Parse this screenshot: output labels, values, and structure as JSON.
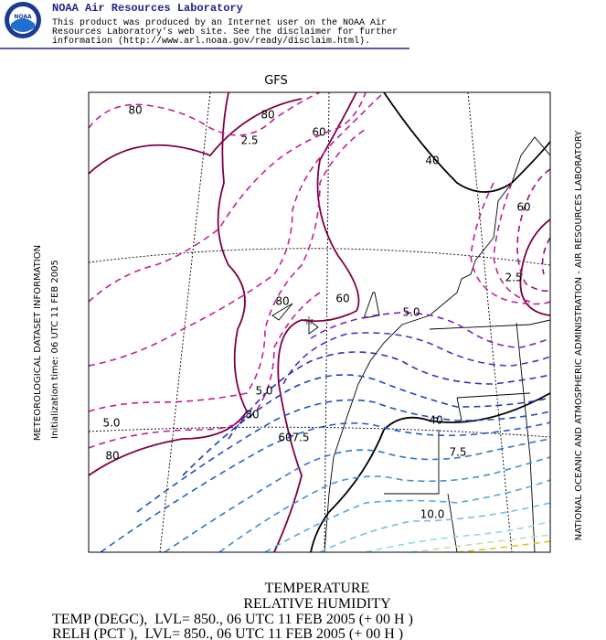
{
  "header": {
    "title": "NOAA Air Resources Laboratory",
    "lines": [
      "This product was produced by an Internet user on the NOAA Air",
      "Resources Laboratory's web site.  See the disclaimer for further",
      "information (http://www.arl.noaa.gov/ready/disclaim.html)."
    ],
    "logo": "NOAA"
  },
  "map": {
    "model": "GFS",
    "left_labels": [
      "METEOROLOGICAL DATASET INFORMATION",
      "Initialization time: 06 UTC 11 FEB 2005"
    ],
    "right_label": "NATIONAL OCEANIC AND ATMOSPHERIC ADMINISTRATION - AIR RESOURCES LABORATORY",
    "contour_labels": [
      "80",
      "80",
      "60",
      "2.5",
      "40",
      "60",
      "2.5",
      "80",
      "60",
      "5.0",
      "5.0",
      "80",
      "40",
      "60",
      "7.5",
      "7.5",
      "80",
      "5.0",
      "10.0"
    ]
  },
  "footer": {
    "lines": [
      "TEMPERATURE",
      "RELATIVE HUMIDITY",
      "TEMP (DEGC),  LVL= 850., 06 UTC 11 FEB 2005 (+ 00 H )",
      "RELH (PCT ),  LVL= 850., 06 UTC 11 FEB 2005 (+ 00 H )"
    ]
  }
}
